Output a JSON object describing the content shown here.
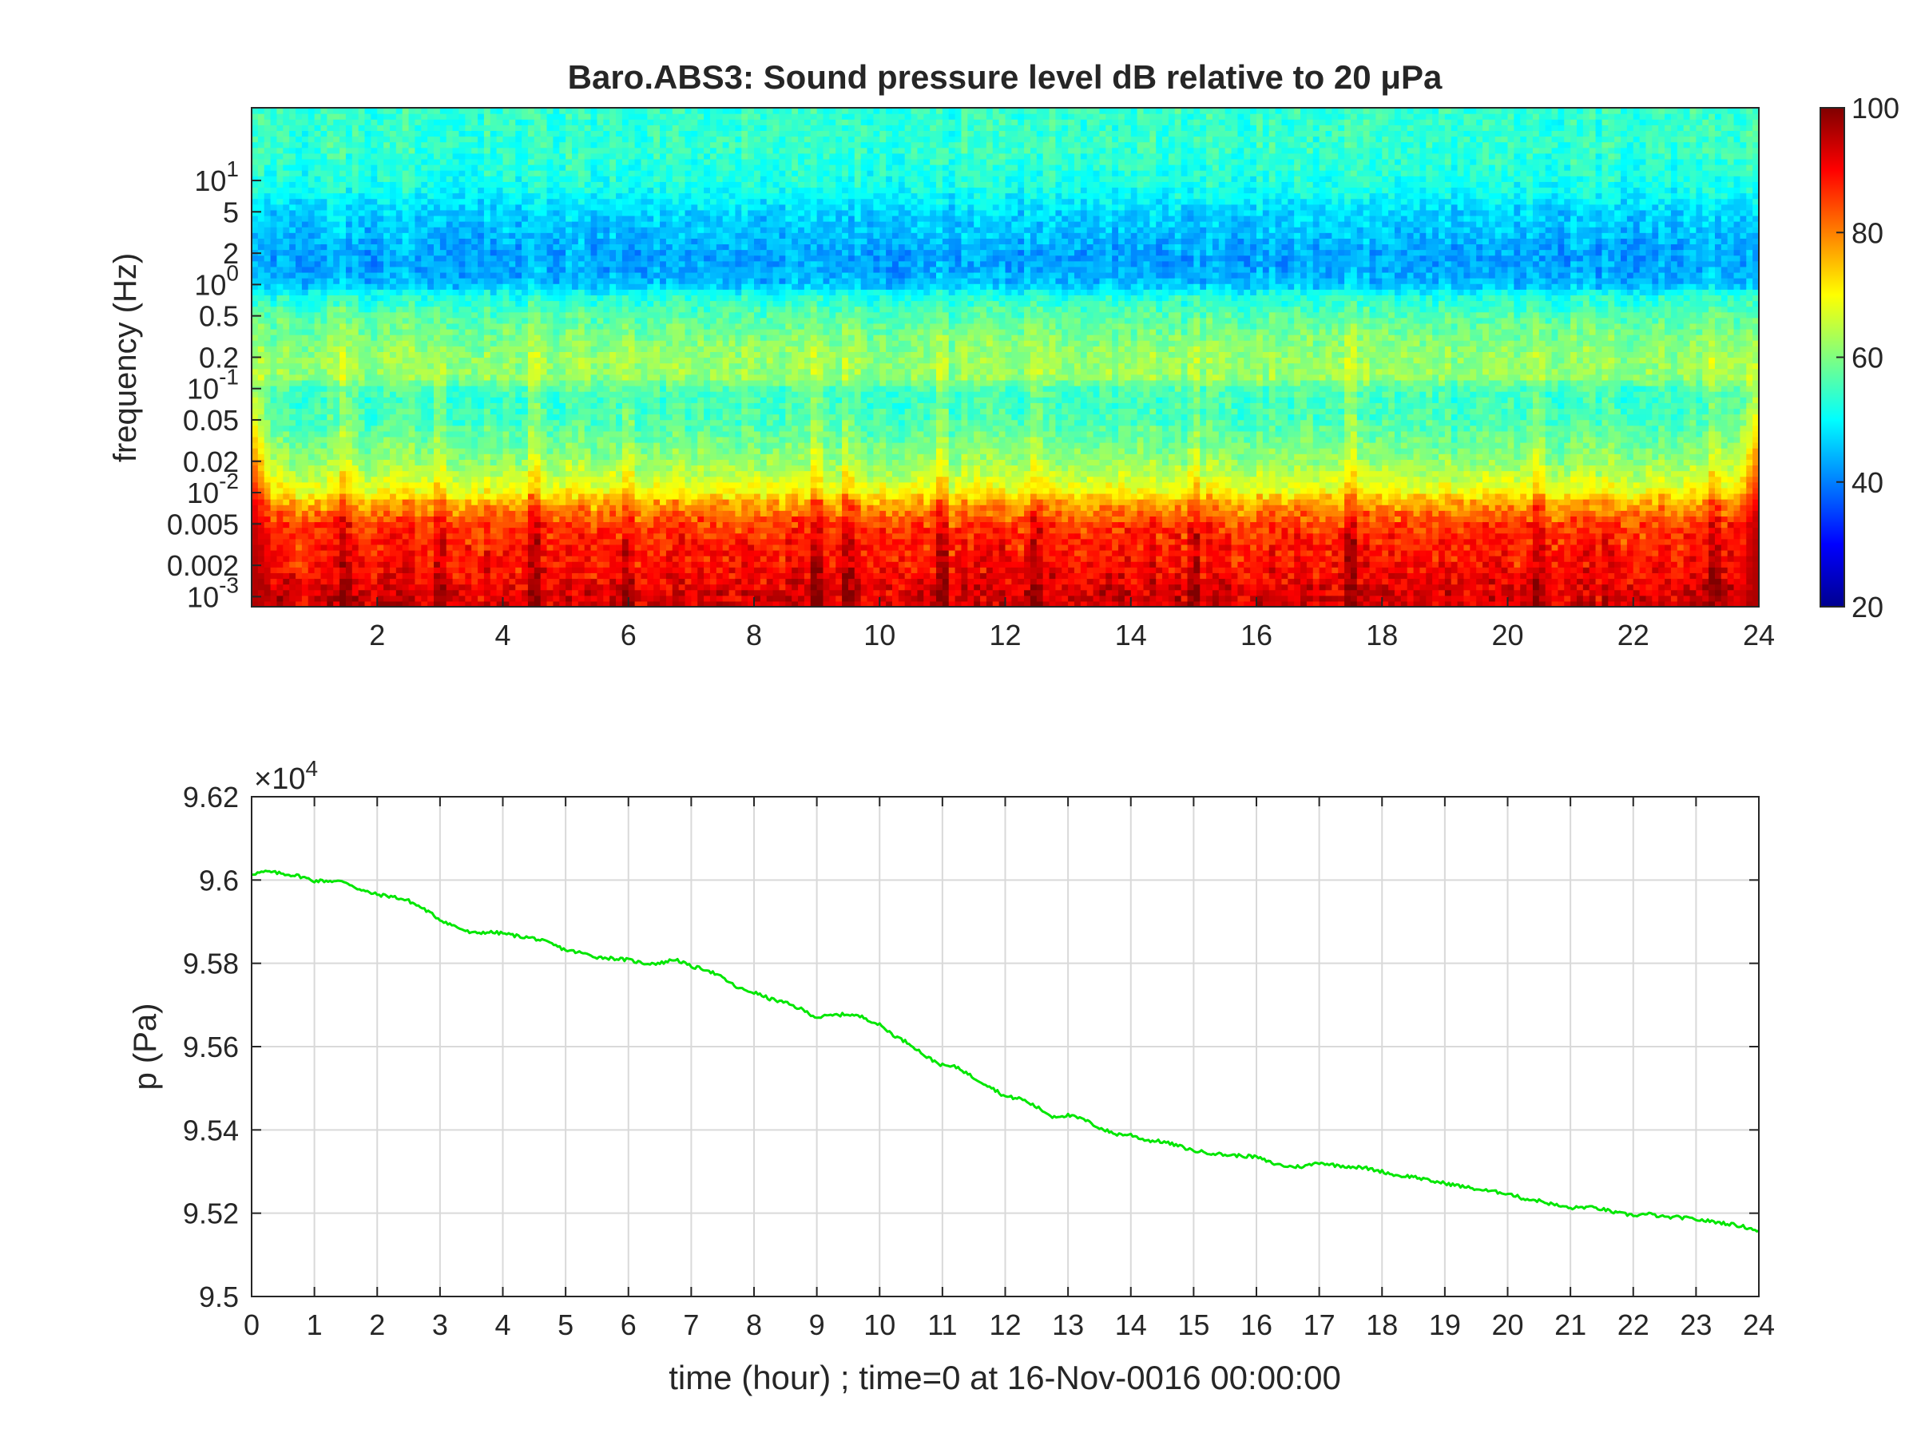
{
  "chart_data": [
    {
      "type": "heatmap",
      "title": "Baro.ABS3: Sound pressure level dB relative to 20 μPa",
      "ylabel": "frequency (Hz)",
      "xlabel": "",
      "xlim": [
        0,
        24
      ],
      "ylim_hz": [
        0.0008,
        50
      ],
      "y_scale": "log",
      "x_ticks": [
        "2",
        "4",
        "6",
        "8",
        "10",
        "12",
        "14",
        "16",
        "18",
        "20",
        "22",
        "24"
      ],
      "y_ticks": [
        {
          "value": 0.001,
          "label": "10",
          "exp": "-3"
        },
        {
          "value": 0.002,
          "label": "0.002"
        },
        {
          "value": 0.005,
          "label": "0.005"
        },
        {
          "value": 0.01,
          "label": "10",
          "exp": "-2"
        },
        {
          "value": 0.02,
          "label": "0.02"
        },
        {
          "value": 0.05,
          "label": "0.05"
        },
        {
          "value": 0.1,
          "label": "10",
          "exp": "-1"
        },
        {
          "value": 0.2,
          "label": "0.2"
        },
        {
          "value": 0.5,
          "label": "0.5"
        },
        {
          "value": 1,
          "label": "10",
          "exp": "0"
        },
        {
          "value": 2,
          "label": "2"
        },
        {
          "value": 5,
          "label": "5"
        },
        {
          "value": 10,
          "label": "10",
          "exp": "1"
        }
      ],
      "colorbar": {
        "colormap": "jet",
        "range": [
          20,
          100
        ],
        "ticks": [
          "20",
          "40",
          "60",
          "80",
          "100"
        ]
      },
      "level_profile_by_frequency": {
        "frequencies_hz": [
          0.001,
          0.002,
          0.003,
          0.005,
          0.008,
          0.01,
          0.015,
          0.02,
          0.03,
          0.05,
          0.08,
          0.1,
          0.13,
          0.2,
          0.3,
          0.5,
          0.8,
          1,
          1.5,
          2,
          3,
          5,
          8,
          10,
          20,
          40
        ],
        "level_db": [
          92,
          88,
          87,
          84,
          76,
          70,
          65,
          62,
          59,
          56,
          55,
          56,
          62,
          62,
          60,
          57,
          52,
          45,
          43,
          43,
          45,
          47,
          51,
          52,
          54,
          54
        ]
      },
      "broadband_events_hour": [
        1.5,
        3,
        4.5,
        6,
        9,
        9.5,
        11,
        12.5,
        15,
        17.5,
        20.5,
        23.3
      ]
    },
    {
      "type": "line",
      "title": "",
      "xlabel": "time (hour) ; time=0 at 16-Nov-0016 00:00:00",
      "ylabel": "p (Pa)",
      "y_multiplier": "×10^4",
      "xlim": [
        0,
        24
      ],
      "ylim": [
        9.5,
        9.62
      ],
      "grid": true,
      "x_ticks": [
        "0",
        "1",
        "2",
        "3",
        "4",
        "5",
        "6",
        "7",
        "8",
        "9",
        "10",
        "11",
        "12",
        "13",
        "14",
        "15",
        "16",
        "17",
        "18",
        "19",
        "20",
        "21",
        "22",
        "23",
        "24"
      ],
      "y_ticks": [
        "9.5",
        "9.52",
        "9.54",
        "9.56",
        "9.58",
        "9.6",
        "9.62"
      ],
      "line_color": "#00e600",
      "series": [
        {
          "x": [
            0,
            0.25,
            0.5,
            0.75,
            1,
            1.25,
            1.5,
            1.75,
            2,
            2.25,
            2.5,
            2.75,
            3,
            3.25,
            3.5,
            3.75,
            4,
            4.25,
            4.5,
            4.75,
            5,
            5.25,
            5.5,
            5.75,
            6,
            6.25,
            6.5,
            6.75,
            7,
            7.25,
            7.5,
            7.75,
            8,
            8.25,
            8.5,
            8.75,
            9,
            9.25,
            9.5,
            9.75,
            10,
            10.25,
            10.5,
            10.75,
            11,
            11.25,
            11.5,
            11.75,
            12,
            12.25,
            12.5,
            12.75,
            13,
            13.25,
            13.5,
            13.75,
            14,
            14.25,
            14.5,
            14.75,
            15,
            15.25,
            15.5,
            15.75,
            16,
            16.25,
            16.5,
            16.75,
            17,
            17.25,
            17.5,
            17.75,
            18,
            18.25,
            18.5,
            18.75,
            19,
            19.25,
            19.5,
            19.75,
            20,
            20.25,
            20.5,
            20.75,
            21,
            21.25,
            21.5,
            21.75,
            22,
            22.25,
            22.5,
            22.75,
            23,
            23.25,
            23.5,
            23.75,
            24
          ],
          "y": [
            9.6015,
            9.602,
            9.6015,
            9.601,
            9.5998,
            9.5998,
            9.5995,
            9.5975,
            9.5965,
            9.596,
            9.595,
            9.593,
            9.5905,
            9.5888,
            9.5872,
            9.5875,
            9.5872,
            9.5865,
            9.586,
            9.5848,
            9.5832,
            9.5825,
            9.5815,
            9.5812,
            9.5808,
            9.58,
            9.58,
            9.581,
            9.5792,
            9.5785,
            9.5765,
            9.574,
            9.573,
            9.5715,
            9.5705,
            9.569,
            9.567,
            9.5675,
            9.5678,
            9.567,
            9.5652,
            9.5625,
            9.5605,
            9.5575,
            9.5555,
            9.555,
            9.5525,
            9.5505,
            9.548,
            9.5475,
            9.5455,
            9.5432,
            9.5435,
            9.5425,
            9.5405,
            9.539,
            9.5388,
            9.5375,
            9.5372,
            9.5362,
            9.535,
            9.5345,
            9.534,
            9.5338,
            9.5335,
            9.532,
            9.5312,
            9.5312,
            9.5322,
            9.5315,
            9.5312,
            9.5308,
            9.53,
            9.529,
            9.5288,
            9.5278,
            9.5272,
            9.5265,
            9.5258,
            9.5252,
            9.5248,
            9.5235,
            9.523,
            9.522,
            9.5212,
            9.5215,
            9.521,
            9.52,
            9.5195,
            9.5198,
            9.519,
            9.519,
            9.5185,
            9.518,
            9.5175,
            9.5168,
            9.5158
          ]
        }
      ]
    }
  ]
}
